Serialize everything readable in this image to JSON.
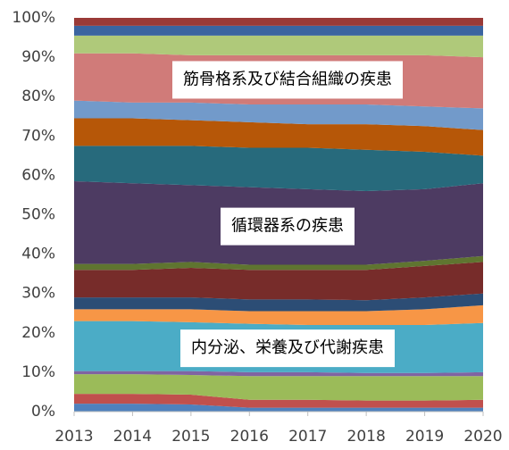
{
  "chart_data": {
    "type": "stacked_area_percent",
    "categories": [
      "2013",
      "2014",
      "2015",
      "2016",
      "2017",
      "2018",
      "2019",
      "2020"
    ],
    "ylim": [
      0,
      100
    ],
    "yticks": [
      {
        "value": 0,
        "label": "0%"
      },
      {
        "value": 10,
        "label": "10%"
      },
      {
        "value": 20,
        "label": "20%"
      },
      {
        "value": 30,
        "label": "30%"
      },
      {
        "value": 40,
        "label": "40%"
      },
      {
        "value": 50,
        "label": "50%"
      },
      {
        "value": 60,
        "label": "60%"
      },
      {
        "value": 70,
        "label": "70%"
      },
      {
        "value": 80,
        "label": "80%"
      },
      {
        "value": 90,
        "label": "90%"
      },
      {
        "value": 100,
        "label": "100%"
      }
    ],
    "series": [
      {
        "color": "#4f81bd",
        "values": [
          2,
          2,
          1.8,
          1,
          1,
          1,
          1,
          1
        ]
      },
      {
        "color": "#c0504d",
        "values": [
          2.5,
          2.5,
          2.5,
          2,
          2,
          1.8,
          1.8,
          2
        ]
      },
      {
        "color": "#9bbb59",
        "values": [
          5,
          5,
          5,
          6,
          6,
          6.2,
          6.2,
          6
        ]
      },
      {
        "color": "#8064a2",
        "values": [
          0.8,
          0.8,
          1,
          1,
          1,
          0.8,
          0.8,
          1
        ]
      },
      {
        "color": "#4bacc6",
        "values": [
          12.7,
          12.7,
          12.4,
          12.3,
          12,
          12.2,
          12.2,
          12.5
        ],
        "label": "内分泌、栄養及び代謝疾患"
      },
      {
        "color": "#f79646",
        "values": [
          3,
          3,
          3.3,
          3.2,
          3.5,
          3.5,
          4,
          4.5
        ]
      },
      {
        "color": "#2c4d75",
        "values": [
          3,
          3,
          3,
          3,
          3,
          2.8,
          3,
          3
        ]
      },
      {
        "color": "#772c2a",
        "values": [
          7,
          7,
          7.5,
          7.5,
          7.5,
          7.7,
          8,
          8
        ]
      },
      {
        "color": "#5f7530",
        "values": [
          1.5,
          1.5,
          1.5,
          1.3,
          1.3,
          1.3,
          1.3,
          1.5
        ]
      },
      {
        "color": "#4d3b62",
        "values": [
          21,
          20.5,
          19.5,
          19.7,
          19.2,
          18.7,
          18.2,
          18.5
        ],
        "label": "循環器系の疾患"
      },
      {
        "color": "#276a7c",
        "values": [
          9,
          9.5,
          10,
          10,
          10.5,
          10.5,
          9.5,
          7
        ]
      },
      {
        "color": "#b65708",
        "values": [
          7,
          7,
          6.5,
          6.5,
          6,
          6.5,
          6.5,
          6.5
        ]
      },
      {
        "color": "#729aca",
        "values": [
          4.5,
          4,
          4.5,
          4.5,
          5,
          5,
          5,
          5.5
        ]
      },
      {
        "color": "#d07b79",
        "values": [
          12,
          12.5,
          12,
          12.5,
          12.5,
          12.5,
          13,
          13
        ],
        "label": "筋骨格系及び結合組織の疾患"
      },
      {
        "color": "#afc97a",
        "values": [
          4.5,
          4.5,
          5,
          5,
          5,
          5,
          5,
          5.5
        ]
      },
      {
        "color": "#3a64a0",
        "values": [
          2.5,
          2.5,
          2.5,
          2.5,
          2.5,
          2.5,
          2.5,
          2.5
        ]
      },
      {
        "color": "#9a3a37",
        "values": [
          2,
          2,
          2,
          2,
          2,
          2,
          2,
          2
        ]
      }
    ]
  }
}
